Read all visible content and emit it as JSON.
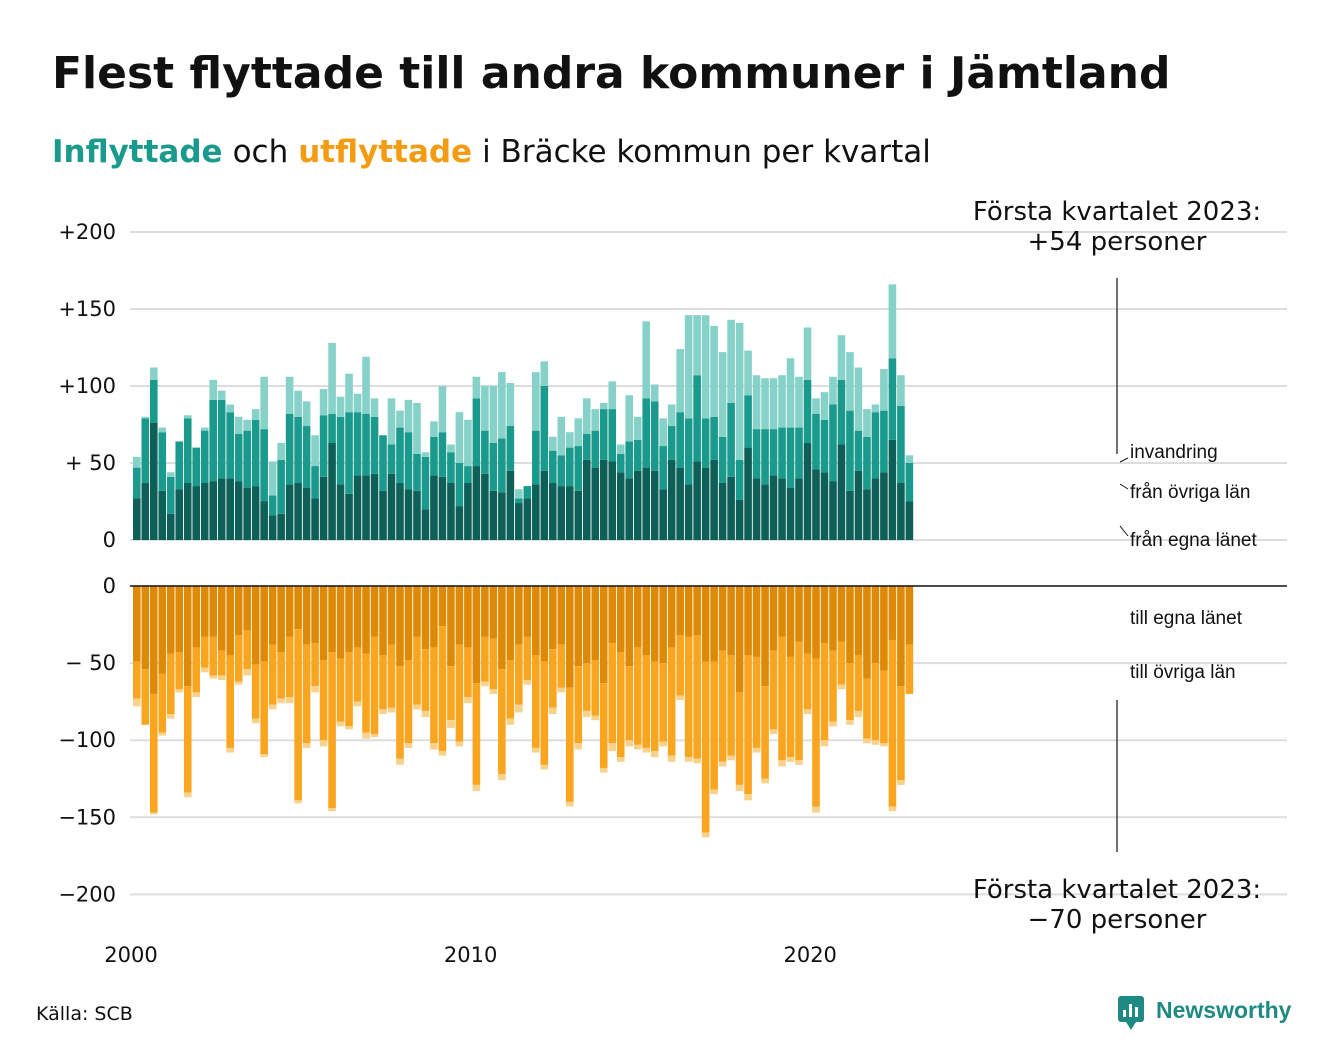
{
  "title": "Flest flyttade till andra kommuner i Jämtland",
  "subtitle": {
    "in_word": "Inflyttade",
    "mid": "och",
    "out_word": "utflyttade",
    "rest": "i Bräcke kommun per kvartal"
  },
  "colors": {
    "in_dark": "#0d5f58",
    "in_mid": "#1a9a8c",
    "in_light": "#86d1c8",
    "out_dark": "#de8a06",
    "out_mid": "#f9a520",
    "out_light": "#f8d18a",
    "subtitle_in": "#1a9a8c",
    "subtitle_out": "#f39c12",
    "brand": "#1f8a83"
  },
  "annotations": {
    "top_line1": "Första kvartalet 2023:",
    "top_line2": "+54 personer",
    "bottom_line1": "Första kvartalet 2023:",
    "bottom_line2": "−70 personer"
  },
  "segment_labels": {
    "invandring": "invandring",
    "fran_ovriga_lan": "från övriga län",
    "fran_egna_lanet": "från egna länet",
    "till_egna_lanet": "till egna länet",
    "till_ovriga_lan": "till övriga län"
  },
  "source": "Källa: SCB",
  "brand": "Newsworthy",
  "chart_data": [
    {
      "type": "bar",
      "stacked": true,
      "x_unit": "quarter",
      "x_start": "2000-Q1",
      "x_end": "2023-Q1",
      "xtick_labels": [
        "2000",
        "2010",
        "2020"
      ],
      "ytick_labels": [
        "0",
        "+ 50",
        "+100",
        "+150",
        "+200"
      ],
      "ylim": [
        0,
        200
      ],
      "grid": true,
      "series": [
        {
          "name": "från egna länet",
          "values": [
            27,
            37,
            76,
            32,
            17,
            33,
            37,
            35,
            37,
            38,
            40,
            40,
            38,
            34,
            35,
            25,
            16,
            17,
            36,
            37,
            34,
            27,
            41,
            63,
            36,
            30,
            42,
            42,
            43,
            32,
            43,
            37,
            33,
            32,
            20,
            42,
            41,
            37,
            22,
            37,
            48,
            43,
            32,
            31,
            45,
            24,
            27,
            36,
            45,
            37,
            35,
            35,
            32,
            52,
            47,
            52,
            51,
            44,
            40,
            45,
            47,
            45,
            33,
            52,
            47,
            36,
            51,
            47,
            52,
            37,
            41,
            26,
            60,
            40,
            36,
            42,
            40,
            34,
            40,
            63,
            46,
            44,
            38,
            62,
            32,
            45,
            33,
            40,
            44,
            65,
            37,
            25
          ]
        },
        {
          "name": "från övriga län",
          "values": [
            20,
            42,
            28,
            38,
            24,
            31,
            42,
            25,
            34,
            53,
            51,
            43,
            31,
            37,
            43,
            47,
            13,
            35,
            46,
            43,
            40,
            21,
            40,
            19,
            44,
            53,
            41,
            40,
            37,
            36,
            19,
            36,
            37,
            24,
            34,
            25,
            29,
            20,
            28,
            11,
            44,
            28,
            31,
            35,
            29,
            3,
            8,
            35,
            55,
            21,
            20,
            25,
            29,
            17,
            24,
            33,
            34,
            12,
            24,
            20,
            45,
            45,
            28,
            22,
            36,
            43,
            56,
            32,
            28,
            30,
            48,
            26,
            34,
            32,
            36,
            30,
            33,
            39,
            33,
            41,
            36,
            34,
            50,
            42,
            52,
            26,
            34,
            43,
            40,
            53,
            50,
            25
          ]
        },
        {
          "name": "invandring",
          "values": [
            7,
            1,
            8,
            3,
            3,
            0,
            2,
            0,
            2,
            13,
            6,
            5,
            11,
            7,
            7,
            34,
            22,
            11,
            24,
            17,
            16,
            20,
            17,
            46,
            13,
            25,
            12,
            37,
            12,
            0,
            30,
            11,
            21,
            33,
            3,
            10,
            30,
            5,
            33,
            30,
            14,
            29,
            37,
            43,
            28,
            6,
            0,
            38,
            16,
            9,
            25,
            10,
            18,
            23,
            14,
            4,
            18,
            6,
            30,
            15,
            50,
            11,
            18,
            14,
            41,
            67,
            39,
            67,
            59,
            55,
            54,
            89,
            29,
            35,
            33,
            33,
            34,
            45,
            33,
            34,
            10,
            18,
            18,
            29,
            38,
            41,
            18,
            5,
            27,
            48,
            20,
            5
          ]
        }
      ]
    },
    {
      "type": "bar",
      "stacked": true,
      "ytick_labels": [
        "0",
        "− 50",
        "−100",
        "−150",
        "−200"
      ],
      "ylim": [
        -200,
        0
      ],
      "grid": true,
      "series": [
        {
          "name": "till egna länet",
          "values": [
            -49,
            -54,
            -70,
            -57,
            -44,
            -43,
            -65,
            -40,
            -33,
            -33,
            -42,
            -45,
            -32,
            -29,
            -51,
            -49,
            -38,
            -43,
            -33,
            -28,
            -38,
            -37,
            -48,
            -43,
            -47,
            -43,
            -40,
            -44,
            -33,
            -45,
            -38,
            -52,
            -48,
            -33,
            -41,
            -40,
            -26,
            -52,
            -38,
            -40,
            -63,
            -33,
            -34,
            -54,
            -48,
            -38,
            -33,
            -45,
            -49,
            -41,
            -38,
            -66,
            -52,
            -50,
            -48,
            -63,
            -37,
            -43,
            -52,
            -40,
            -45,
            -49,
            -50,
            -40,
            -32,
            -33,
            -32,
            -49,
            -49,
            -42,
            -45,
            -69,
            -45,
            -46,
            -65,
            -42,
            -33,
            -46,
            -36,
            -44,
            -47,
            -37,
            -42,
            -36,
            -50,
            -45,
            -60,
            -50,
            -55,
            -35,
            -65,
            -38
          ]
        },
        {
          "name": "till övriga län",
          "values": [
            -24,
            -36,
            -77,
            -38,
            -39,
            -24,
            -69,
            -29,
            -20,
            -25,
            -16,
            -60,
            -30,
            -25,
            -35,
            -60,
            -39,
            -30,
            -39,
            -111,
            -64,
            -28,
            -52,
            -101,
            -41,
            -48,
            -35,
            -51,
            -63,
            -35,
            -41,
            -60,
            -54,
            -44,
            -40,
            -62,
            -81,
            -35,
            -63,
            -32,
            -66,
            -29,
            -33,
            -68,
            -38,
            -39,
            -28,
            -60,
            -67,
            -38,
            -28,
            -74,
            -50,
            -31,
            -36,
            -55,
            -65,
            -68,
            -48,
            -63,
            -60,
            -58,
            -51,
            -70,
            -39,
            -78,
            -80,
            -111,
            -83,
            -72,
            -65,
            -60,
            -90,
            -59,
            -60,
            -51,
            -80,
            -65,
            -77,
            -36,
            -96,
            -63,
            -46,
            -28,
            -37,
            -36,
            -39,
            -50,
            -47,
            -108,
            -61,
            -32
          ]
        },
        {
          "name": "",
          "values": [
            -5,
            0,
            -1,
            -2,
            -3,
            -2,
            -3,
            -3,
            -3,
            -2,
            -3,
            -3,
            -2,
            -4,
            -3,
            -2,
            -3,
            -3,
            -4,
            -2,
            -3,
            -4,
            -4,
            -2,
            -3,
            -2,
            -3,
            -4,
            -2,
            -3,
            -3,
            -4,
            -3,
            -3,
            -4,
            -4,
            -3,
            -5,
            -3,
            -4,
            -4,
            -3,
            -3,
            -4,
            -4,
            -5,
            -3,
            -3,
            -3,
            -4,
            -3,
            -3,
            -4,
            -4,
            -3,
            -3,
            -5,
            -3,
            -4,
            -3,
            -3,
            -4,
            -3,
            -4,
            -3,
            -3,
            -3,
            -3,
            -3,
            -3,
            -3,
            -4,
            -4,
            -3,
            -3,
            -3,
            -4,
            -3,
            -3,
            -3,
            -4,
            -4,
            -3,
            -3,
            -3,
            -4,
            -3,
            -3,
            -2,
            -3,
            -3,
            0
          ]
        }
      ]
    }
  ]
}
